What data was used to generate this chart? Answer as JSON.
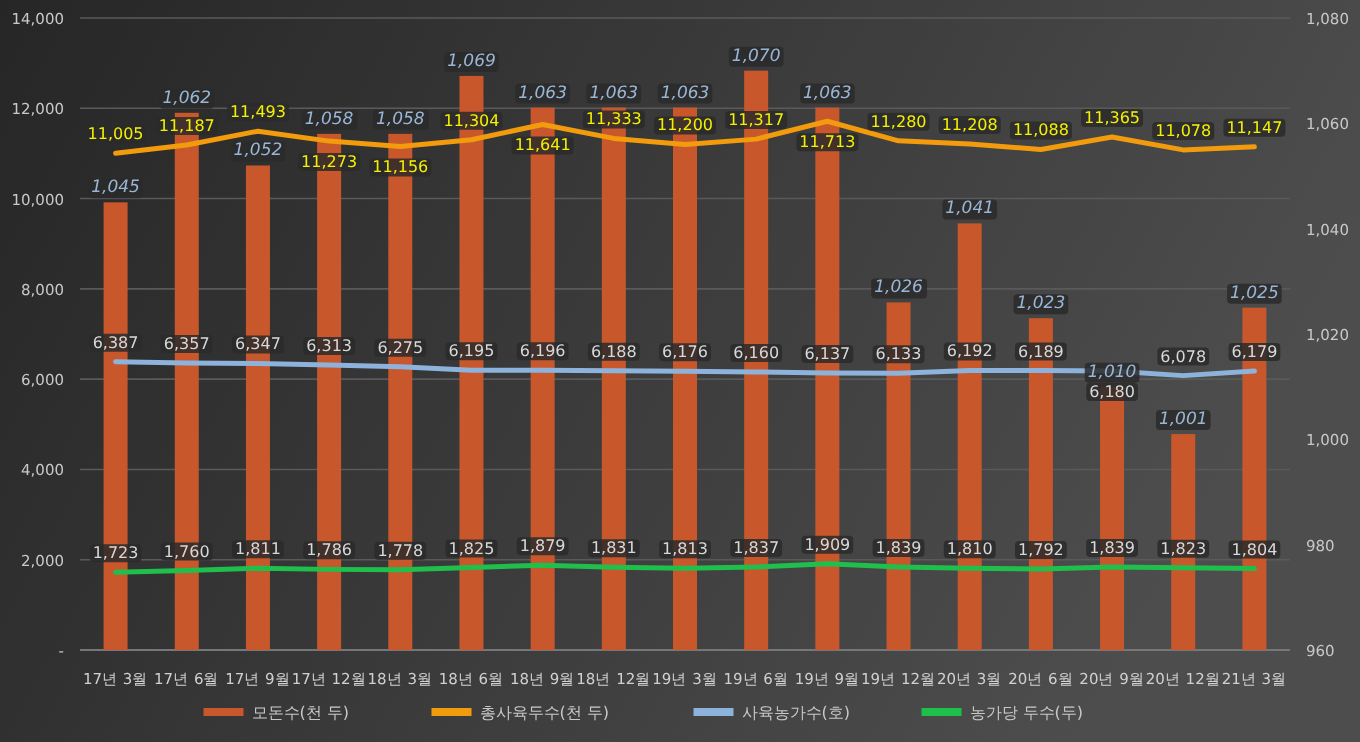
{
  "chart_data": {
    "type": "bar",
    "categories": [
      "17년 3월",
      "17년 6월",
      "17년 9월",
      "17년 12월",
      "18년 3월",
      "18년 6월",
      "18년 9월",
      "18년 12월",
      "19년 3월",
      "19년 6월",
      "19년 9월",
      "19년 12월",
      "20년 3월",
      "20년 6월",
      "20년 9월",
      "20년 12월",
      "21년 3월"
    ],
    "series": [
      {
        "name": "모돈수(천 두)",
        "axis": "y2",
        "color": "#c8582c",
        "values": [
          1045,
          1062,
          1052,
          1058,
          1058,
          1069,
          1063,
          1063,
          1063,
          1070,
          1063,
          1026,
          1041,
          1023,
          1010,
          1001,
          1025
        ],
        "value_labels": [
          "1,045",
          "1,062",
          "1,052",
          "1,058",
          "1,058",
          "1,069",
          "1,063",
          "1,063",
          "1,063",
          "1,070",
          "1,063",
          "1,026",
          "1,041",
          "1,023",
          "1,010",
          "1,001",
          "1,025"
        ]
      },
      {
        "name": "총사육두수(천 두)",
        "type": "line",
        "color": "#f29b0c",
        "values": [
          11005,
          11187,
          11493,
          11273,
          11156,
          11304,
          11641,
          11333,
          11200,
          11317,
          11713,
          11280,
          11208,
          11088,
          11365,
          11078,
          11147
        ],
        "value_labels": [
          "11,005",
          "11,187",
          "11,493",
          "11,273",
          "11,156",
          "11,304",
          "11,641",
          "11,333",
          "11,200",
          "11,317",
          "11,713",
          "11,280",
          "11,208",
          "11,088",
          "11,365",
          "11,078",
          "11,147"
        ]
      },
      {
        "name": "사육농가수(호)",
        "type": "line",
        "color": "#8db3dc",
        "values": [
          6387,
          6357,
          6347,
          6313,
          6275,
          6195,
          6196,
          6188,
          6176,
          6160,
          6137,
          6133,
          6192,
          6189,
          6180,
          6078,
          6179
        ],
        "value_labels": [
          "6,387",
          "6,357",
          "6,347",
          "6,313",
          "6,275",
          "6,195",
          "6,196",
          "6,188",
          "6,176",
          "6,160",
          "6,137",
          "6,133",
          "6,192",
          "6,189",
          "6,180",
          "6,078",
          "6,179"
        ]
      },
      {
        "name": "농가당 두수(두)",
        "type": "line",
        "color": "#1fbf4c",
        "values": [
          1723,
          1760,
          1811,
          1786,
          1778,
          1825,
          1879,
          1831,
          1813,
          1837,
          1909,
          1839,
          1810,
          1792,
          1839,
          1823,
          1804
        ],
        "value_labels": [
          "1,723",
          "1,760",
          "1,811",
          "1,786",
          "1,778",
          "1,825",
          "1,879",
          "1,831",
          "1,813",
          "1,837",
          "1,909",
          "1,839",
          "1,810",
          "1,792",
          "1,839",
          "1,823",
          "1,804"
        ]
      }
    ],
    "ylim": [
      0,
      14000
    ],
    "yticks": [
      {
        "value": 0,
        "label": "-"
      },
      {
        "value": 2000,
        "label": "2,000"
      },
      {
        "value": 4000,
        "label": "4,000"
      },
      {
        "value": 6000,
        "label": "6,000"
      },
      {
        "value": 8000,
        "label": "8,000"
      },
      {
        "value": 10000,
        "label": "10,000"
      },
      {
        "value": 12000,
        "label": "12,000"
      },
      {
        "value": 14000,
        "label": "14,000"
      }
    ],
    "y2lim": [
      960,
      1080
    ],
    "y2ticks": [
      960,
      980,
      {
        "value": 1000,
        "label": "1,000"
      },
      {
        "value": 1020,
        "label": "1,020"
      },
      {
        "value": 1040,
        "label": "1,040"
      },
      {
        "value": 1060,
        "label": "1,060"
      },
      {
        "value": 1080,
        "label": "1,080"
      }
    ],
    "grid": "y",
    "legend": "bottom"
  }
}
